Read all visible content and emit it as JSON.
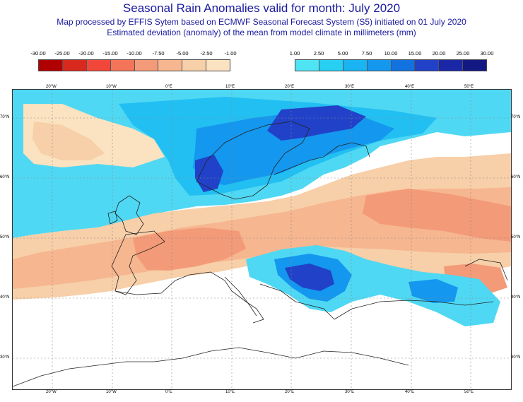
{
  "header": {
    "title": "Seasonal Rain Anomalies valid for month: July 2020",
    "subtitle_line1": "Map processed by EFFIS Sytem based on ECMWF Seasonal Forecast System (S5) initiated on 01 July 2020",
    "subtitle_line2": "Estimated deviation (anomaly) of the mean from model climate in millimeters (mm)"
  },
  "legend_negative": {
    "labels": [
      "-30.00",
      "-25.00",
      "-20.00",
      "-15.00",
      "-10.00",
      "-7.50",
      "-5.00",
      "-2.50",
      "-1.00"
    ],
    "colors": [
      "#b00000",
      "#d9291f",
      "#f0473a",
      "#f4745a",
      "#f39a78",
      "#f6b690",
      "#f7cfa8",
      "#fbe2c0"
    ]
  },
  "legend_positive": {
    "labels": [
      "1.00",
      "2.50",
      "5.00",
      "7.50",
      "10.00",
      "15.00",
      "20.00",
      "25.00",
      "30.00"
    ],
    "colors": [
      "#4fe4f4",
      "#27d0f2",
      "#1bb4f2",
      "#1497ee",
      "#1172e0",
      "#2142c8",
      "#1a28a8",
      "#141883"
    ]
  },
  "map": {
    "lon_labels": [
      "20°W",
      "10°W",
      "0°E",
      "10°E",
      "20°E",
      "30°E",
      "40°E",
      "50°E"
    ],
    "lat_labels": [
      "70°N",
      "60°N",
      "50°N",
      "40°N",
      "30°N"
    ]
  }
}
